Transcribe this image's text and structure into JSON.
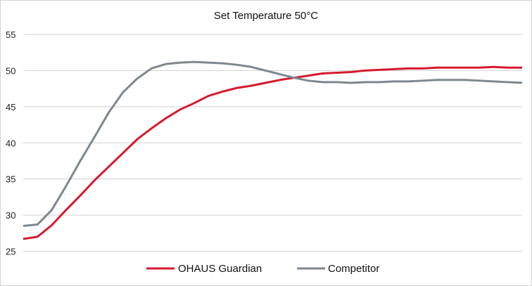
{
  "chart_data": {
    "type": "line",
    "title": "Set Temperature 50°C",
    "xlabel": "",
    "ylabel": "",
    "ylim": [
      25,
      55
    ],
    "yticks": [
      "25",
      "30",
      "35",
      "40",
      "45",
      "50",
      "55"
    ],
    "grid": true,
    "legend_position": "bottom",
    "series": [
      {
        "name": "OHAUS Guardian",
        "color": "#d7192d",
        "values": [
          26.7,
          27.0,
          28.6,
          30.7,
          32.7,
          34.8,
          36.7,
          38.6,
          40.5,
          42.0,
          43.4,
          44.6,
          45.5,
          46.5,
          47.1,
          47.6,
          47.9,
          48.3,
          48.7,
          49.0,
          49.3,
          49.6,
          49.7,
          49.8,
          50.0,
          50.1,
          50.2,
          50.3,
          50.3,
          50.4,
          50.4,
          50.4,
          50.4,
          50.5,
          50.4,
          50.4
        ]
      },
      {
        "name": "Competitor",
        "color": "#7e8790",
        "values": [
          28.5,
          28.7,
          30.7,
          34.0,
          37.5,
          40.8,
          44.2,
          47.0,
          48.9,
          50.3,
          50.9,
          51.1,
          51.2,
          51.1,
          51.0,
          50.8,
          50.5,
          50.0,
          49.5,
          49.0,
          48.6,
          48.4,
          48.4,
          48.3,
          48.4,
          48.4,
          48.5,
          48.5,
          48.6,
          48.7,
          48.7,
          48.7,
          48.6,
          48.5,
          48.4,
          48.3
        ]
      }
    ]
  }
}
